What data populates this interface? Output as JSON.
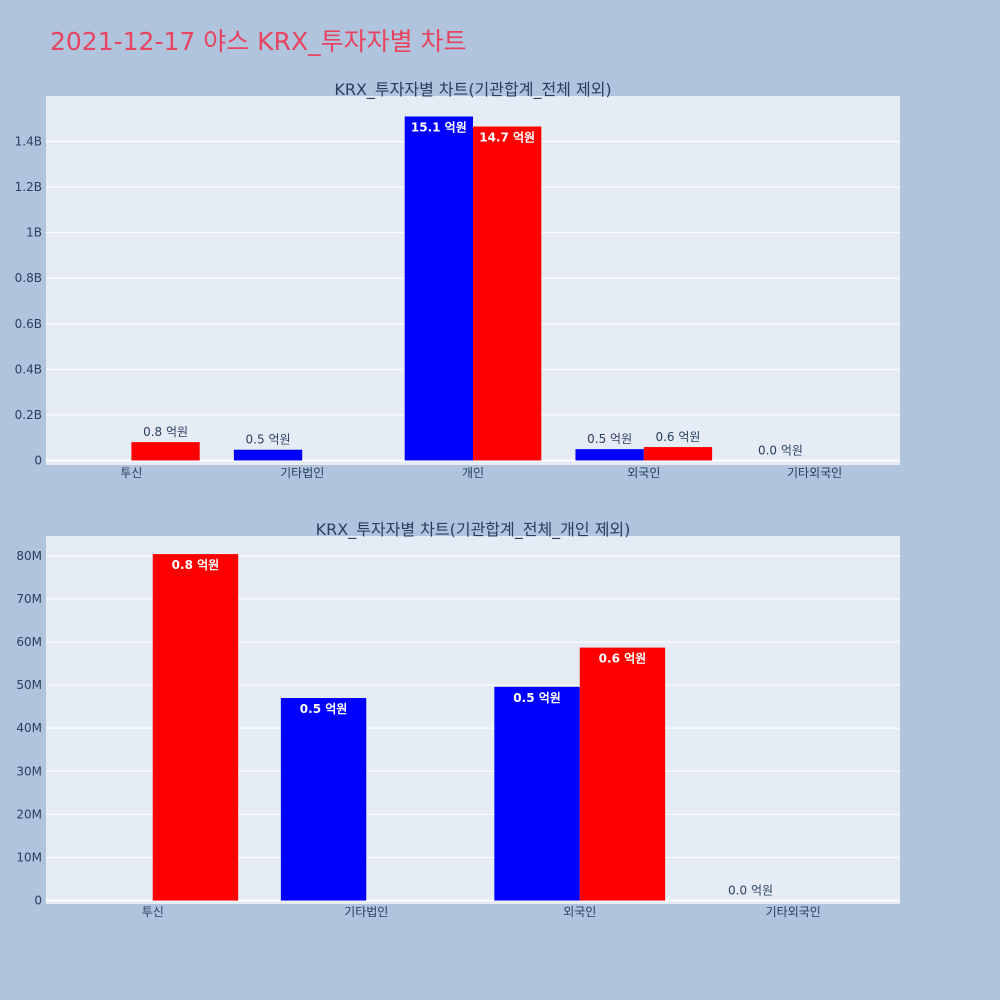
{
  "page_title": "2021-12-17 야스 KRX_투자자별 차트",
  "colors": {
    "buy": "#0000ff",
    "sell": "#ff0000",
    "plot_bg": "#e5ecf6",
    "page_bg": "#b0c4de",
    "title": "#e8435f"
  },
  "chart_data": [
    {
      "type": "bar",
      "title": "KRX_투자자별 차트(기관합계_전체 제외)",
      "categories": [
        "투신",
        "기타법인",
        "개인",
        "외국인",
        "기타외국인"
      ],
      "series": [
        {
          "color": "#0000ff",
          "values": [
            0,
            47000000,
            1510000000,
            49600000,
            0
          ],
          "labels": [
            "",
            "0.5 억원",
            "15.1 억원",
            "0.5 억원",
            "0.0 억원"
          ]
        },
        {
          "color": "#ff0000",
          "values": [
            80400000,
            0,
            1466000000,
            58700000,
            0
          ],
          "labels": [
            "0.8 억원",
            "",
            "14.7 억원",
            "0.6 억원",
            ""
          ]
        }
      ],
      "yticks": [
        0,
        200000000,
        400000000,
        600000000,
        800000000,
        1000000000,
        1200000000,
        1400000000
      ],
      "ytick_labels": [
        "0",
        "0.2B",
        "0.4B",
        "0.6B",
        "0.8B",
        "1B",
        "1.2B",
        "1.4B"
      ],
      "ylim": [
        -20000000,
        1600000000
      ],
      "grid": true,
      "legend": "none"
    },
    {
      "type": "bar",
      "title": "KRX_투자자별 차트(기관합계_전체_개인 제외)",
      "categories": [
        "투신",
        "기타법인",
        "외국인",
        "기타외국인"
      ],
      "series": [
        {
          "color": "#0000ff",
          "values": [
            0,
            47000000,
            49600000,
            0
          ],
          "labels": [
            "",
            "0.5 억원",
            "0.5 억원",
            "0.0 억원"
          ]
        },
        {
          "color": "#ff0000",
          "values": [
            80400000,
            0,
            58700000,
            0
          ],
          "labels": [
            "0.8 억원",
            "",
            "0.6 억원",
            ""
          ]
        }
      ],
      "yticks": [
        0,
        10000000,
        20000000,
        30000000,
        40000000,
        50000000,
        60000000,
        70000000,
        80000000
      ],
      "ytick_labels": [
        "0",
        "10M",
        "20M",
        "30M",
        "40M",
        "50M",
        "60M",
        "70M",
        "80M"
      ],
      "ylim": [
        -800000,
        84600000
      ],
      "grid": true,
      "legend": "none"
    }
  ]
}
